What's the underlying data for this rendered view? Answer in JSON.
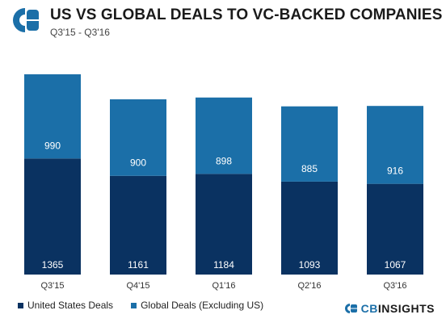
{
  "header": {
    "title": "US VS GLOBAL DEALS TO VC-BACKED COMPANIES",
    "subtitle": "Q3'15 - Q3'16"
  },
  "legend": {
    "items": [
      {
        "label": "United States Deals",
        "color": "#0a3261"
      },
      {
        "label": "Global Deals (Excluding US)",
        "color": "#1b6fa8"
      }
    ]
  },
  "brand": {
    "prefix": "CB",
    "suffix": "INSIGHTS"
  },
  "colors": {
    "us": "#0a3261",
    "global": "#1b6fa8",
    "logo": "#1b6fa8",
    "bar_label": "#ffffff"
  },
  "chart_data": {
    "type": "bar",
    "stacked": true,
    "categories": [
      "Q3'15",
      "Q4'15",
      "Q1'16",
      "Q2'16",
      "Q3'16"
    ],
    "series": [
      {
        "name": "United States Deals",
        "values": [
          1365,
          1161,
          1184,
          1093,
          1067
        ]
      },
      {
        "name": "Global Deals (Excluding US)",
        "values": [
          990,
          900,
          898,
          885,
          916
        ]
      }
    ],
    "title": "US VS GLOBAL DEALS TO VC-BACKED COMPANIES",
    "subtitle": "Q3'15 - Q3'16",
    "xlabel": "",
    "ylabel": "",
    "ylim": [
      0,
      2355
    ],
    "grid": false,
    "legend_position": "bottom-left"
  }
}
